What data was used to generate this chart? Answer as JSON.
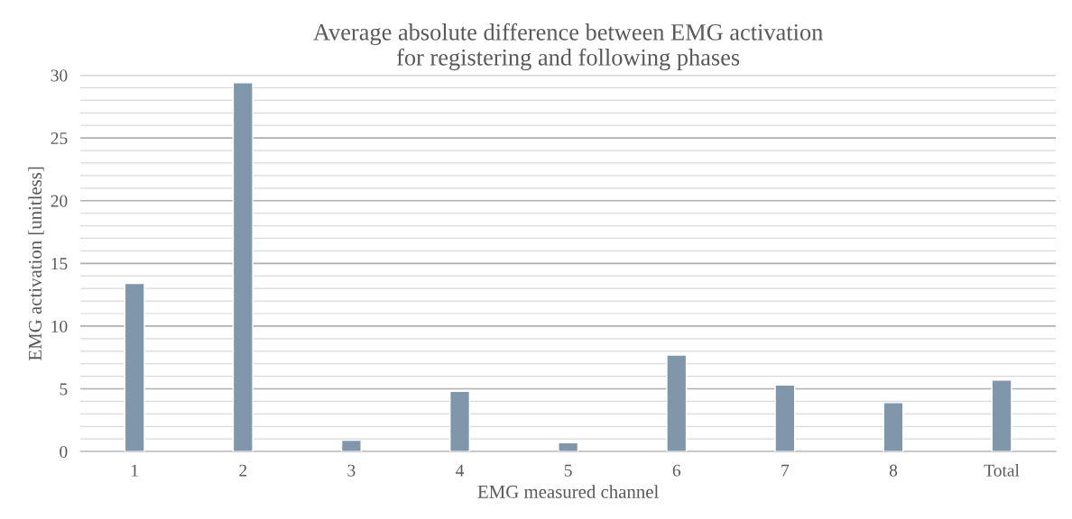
{
  "chart_data": {
    "type": "bar",
    "title": "Average absolute difference between EMG activation\nfor registering and following phases",
    "xlabel": "EMG measured channel",
    "ylabel": "EMG activation [unitless]",
    "categories": [
      "1",
      "2",
      "3",
      "4",
      "5",
      "6",
      "7",
      "8",
      "Total"
    ],
    "values": [
      13.4,
      29.4,
      0.9,
      4.8,
      0.7,
      7.7,
      5.3,
      3.9,
      5.7
    ],
    "color": "#8096ab",
    "ylim": [
      0,
      30
    ],
    "yticks": [
      0,
      {
        "value": 1,
        "label": null
      },
      {
        "value": 2,
        "label": null
      },
      {
        "value": 3,
        "label": null
      },
      {
        "value": 4,
        "label": null
      },
      5,
      {
        "value": 6,
        "label": null
      },
      {
        "value": 7,
        "label": null
      },
      {
        "value": 8,
        "label": null
      },
      {
        "value": 9,
        "label": null
      },
      10,
      {
        "value": 11,
        "label": null
      },
      {
        "value": 12,
        "label": null
      },
      {
        "value": 13,
        "label": null
      },
      {
        "value": 14,
        "label": null
      },
      15,
      {
        "value": 16,
        "label": null
      },
      {
        "value": 17,
        "label": null
      },
      {
        "value": 18,
        "label": null
      },
      {
        "value": 19,
        "label": null
      },
      20,
      {
        "value": 21,
        "label": null
      },
      {
        "value": 22,
        "label": null
      },
      {
        "value": 23,
        "label": null
      },
      {
        "value": 24,
        "label": null
      },
      25,
      {
        "value": 26,
        "label": null
      },
      {
        "value": 27,
        "label": null
      },
      {
        "value": 28,
        "label": null
      },
      {
        "value": 29,
        "label": null
      },
      30
    ],
    "grid": "y"
  }
}
